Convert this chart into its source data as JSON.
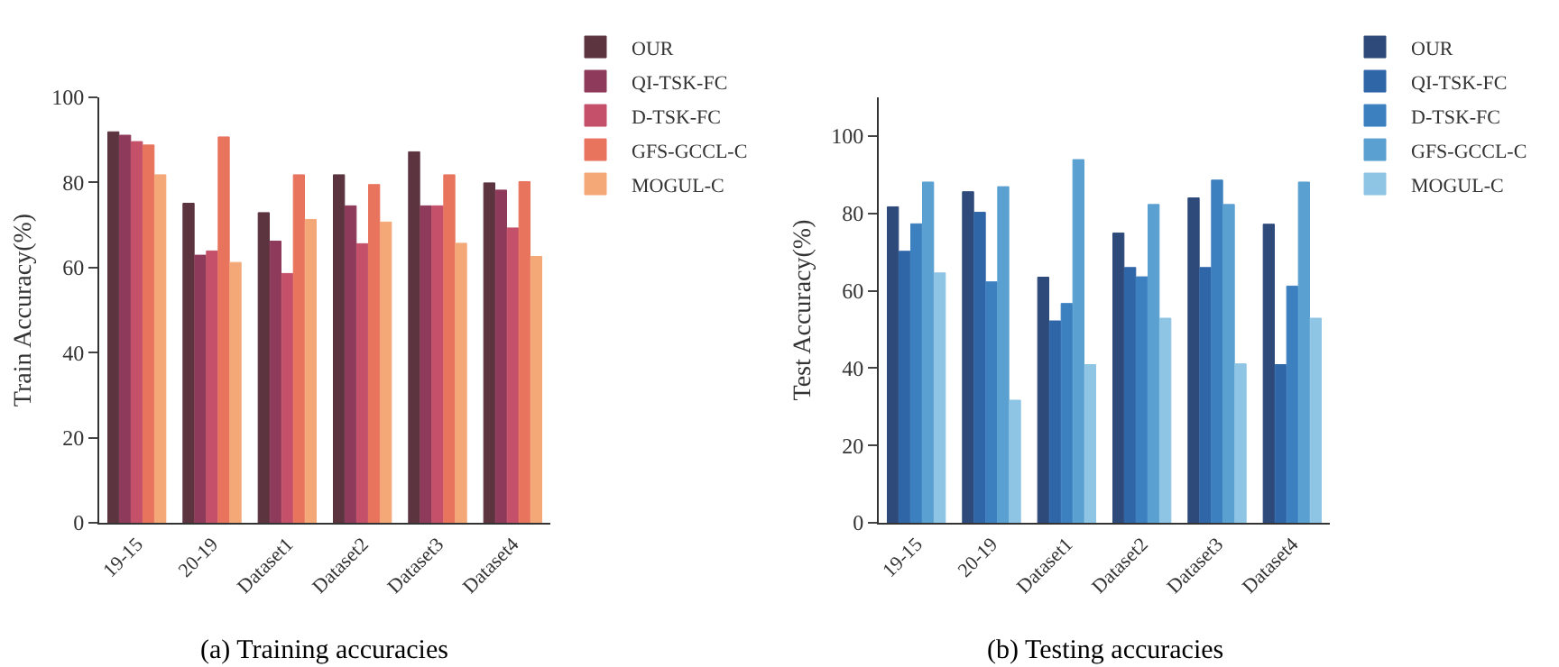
{
  "chart_data": [
    {
      "type": "bar",
      "ylabel": "Train Accuracy(%)",
      "categories": [
        "19-15",
        "20-19",
        "Dataset1",
        "Dataset2",
        "Dataset3",
        "Dataset4"
      ],
      "ylim": [
        0,
        100
      ],
      "yticks": [
        0,
        20,
        40,
        60,
        80,
        100
      ],
      "grid": false,
      "legend": "top right",
      "annotations": [
        "(a) Training accuracies"
      ],
      "series": [
        {
          "name": "OUR",
          "color": "#5c3440",
          "values": [
            91.9,
            75.1,
            72.9,
            81.8,
            87.2,
            79.9
          ]
        },
        {
          "name": "QI-TSK-FC",
          "color": "#8e3a5a",
          "values": [
            91.1,
            62.9,
            66.2,
            74.5,
            74.5,
            78.2
          ]
        },
        {
          "name": "D-TSK-FC",
          "color": "#c4506a",
          "values": [
            89.6,
            63.9,
            58.6,
            65.6,
            74.5,
            69.3
          ]
        },
        {
          "name": "GFS-GCCL-C",
          "color": "#e8745e",
          "values": [
            88.8,
            90.7,
            81.8,
            79.5,
            81.8,
            80.2
          ]
        },
        {
          "name": "MOGUL-C",
          "color": "#f4a878",
          "values": [
            81.8,
            61.2,
            71.3,
            70.7,
            65.7,
            62.6
          ]
        }
      ]
    },
    {
      "type": "bar",
      "ylabel": "Test Accuracy(%)",
      "categories": [
        "19-15",
        "20-19",
        "Dataset1",
        "Dataset2",
        "Dataset3",
        "Dataset4"
      ],
      "ylim": [
        0,
        110
      ],
      "yticks": [
        0,
        20,
        40,
        60,
        80,
        100
      ],
      "grid": false,
      "legend": "top right",
      "annotations": [
        "(b) Testing accuracies"
      ],
      "series": [
        {
          "name": "OUR",
          "color": "#2e4a7a",
          "values": [
            81.7,
            85.6,
            63.5,
            74.9,
            84.0,
            77.2
          ]
        },
        {
          "name": "QI-TSK-FC",
          "color": "#2f66a8",
          "values": [
            70.2,
            80.3,
            52.2,
            66.0,
            66.0,
            40.9
          ]
        },
        {
          "name": "D-TSK-FC",
          "color": "#3d80c0",
          "values": [
            77.3,
            62.3,
            56.7,
            63.6,
            88.6,
            61.2
          ]
        },
        {
          "name": "GFS-GCCL-C",
          "color": "#5aa0d0",
          "values": [
            88.1,
            86.9,
            93.9,
            82.3,
            82.3,
            88.1
          ]
        },
        {
          "name": "MOGUL-C",
          "color": "#8ec4e4",
          "values": [
            64.6,
            31.7,
            40.9,
            52.9,
            41.1,
            52.9
          ]
        }
      ]
    }
  ]
}
